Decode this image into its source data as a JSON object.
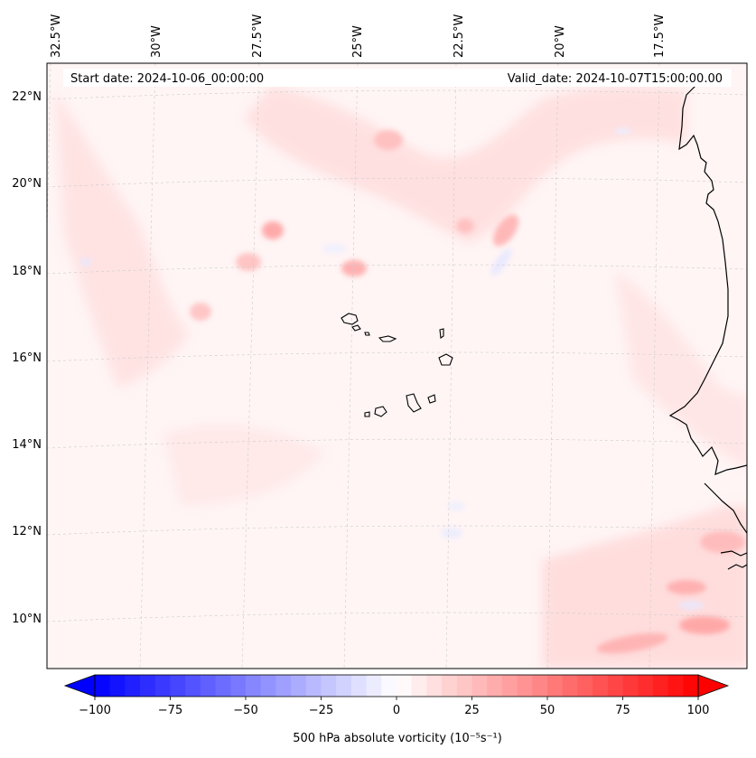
{
  "map": {
    "start_label": "Start date: 2024-10-06_00:00:00",
    "valid_label": "Valid_date: 2024-10-07T15:00:00.00",
    "lon_ticks": [
      "32.5°W",
      "30°W",
      "27.5°W",
      "25°W",
      "22.5°W",
      "20°W",
      "17.5°W"
    ],
    "lat_ticks": [
      "22°N",
      "20°N",
      "18°N",
      "16°N",
      "14°N",
      "12°N",
      "10°N"
    ],
    "land_color": "#000000",
    "field_base_color": "#fff5f5"
  },
  "colorbar": {
    "min": -100,
    "max": 100,
    "ticks": [
      "−100",
      "−75",
      "−50",
      "−25",
      "0",
      "25",
      "50",
      "75",
      "100"
    ],
    "tick_values": [
      -100,
      -75,
      -50,
      -25,
      0,
      25,
      50,
      75,
      100
    ],
    "label": "500 hPa absolute vorticity (10⁻⁵s⁻¹)",
    "low_color": "#0000ff",
    "high_color": "#ff0000",
    "mid_color": "#ffffff",
    "levels": 40
  }
}
